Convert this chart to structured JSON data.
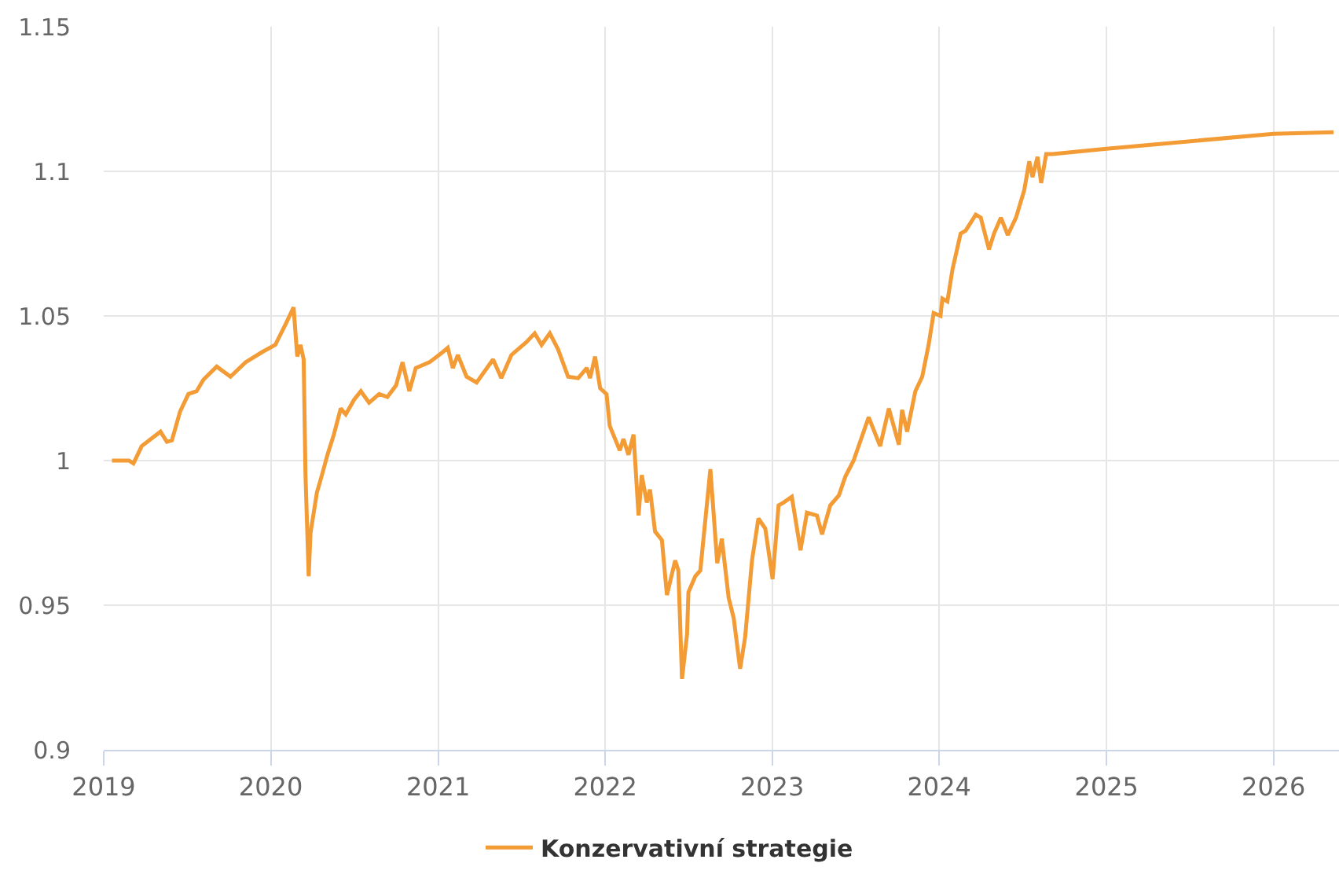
{
  "chart_data": {
    "type": "line",
    "x": [
      "2019-01-19",
      "2019-02-25",
      "2019-03-07",
      "2019-03-25",
      "2019-05-05",
      "2019-05-19",
      "2019-05-30",
      "2019-06-17",
      "2019-07-05",
      "2019-07-23",
      "2019-08-07",
      "2019-09-05",
      "2019-10-05",
      "2019-11-07",
      "2019-12-13",
      "2020-01-11",
      "2020-02-02",
      "2020-02-20",
      "2020-02-28",
      "2020-03-06",
      "2020-03-13",
      "2020-03-17",
      "2020-03-24",
      "2020-03-28",
      "2020-04-11",
      "2020-04-22",
      "2020-05-04",
      "2020-05-18",
      "2020-06-02",
      "2020-06-13",
      "2020-07-01",
      "2020-07-16",
      "2020-08-03",
      "2020-08-25",
      "2020-09-12",
      "2020-10-01",
      "2020-10-15",
      "2020-10-30",
      "2020-11-13",
      "2020-12-13",
      "2021-01-11",
      "2021-01-22",
      "2021-02-02",
      "2021-02-13",
      "2021-03-04",
      "2021-03-26",
      "2021-05-01",
      "2021-05-19",
      "2021-06-10",
      "2021-07-13",
      "2021-07-31",
      "2021-08-15",
      "2021-09-02",
      "2021-09-20",
      "2021-10-12",
      "2021-11-03",
      "2021-11-22",
      "2021-11-29",
      "2021-12-10",
      "2021-12-21",
      "2022-01-04",
      "2022-01-11",
      "2022-02-02",
      "2022-02-10",
      "2022-02-21",
      "2022-03-04",
      "2022-03-15",
      "2022-03-22",
      "2022-04-02",
      "2022-04-09",
      "2022-04-20",
      "2022-05-05",
      "2022-05-16",
      "2022-06-03",
      "2022-06-10",
      "2022-06-18",
      "2022-06-29",
      "2022-07-02",
      "2022-07-17",
      "2022-07-28",
      "2022-08-19",
      "2022-09-03",
      "2022-09-13",
      "2022-09-28",
      "2022-10-09",
      "2022-10-23",
      "2022-11-03",
      "2022-11-18",
      "2022-12-02",
      "2022-12-17",
      "2023-01-02",
      "2023-01-15",
      "2023-01-26",
      "2023-02-13",
      "2023-03-04",
      "2023-03-18",
      "2023-04-09",
      "2023-04-20",
      "2023-05-08",
      "2023-05-27",
      "2023-06-10",
      "2023-06-28",
      "2023-07-31",
      "2023-08-25",
      "2023-09-13",
      "2023-10-05",
      "2023-10-12",
      "2023-10-23",
      "2023-11-10",
      "2023-11-25",
      "2023-12-09",
      "2023-12-20",
      "2024-01-04",
      "2024-01-08",
      "2024-01-19",
      "2024-01-30",
      "2024-02-17",
      "2024-02-28",
      "2024-03-21",
      "2024-04-01",
      "2024-04-19",
      "2024-04-30",
      "2024-05-15",
      "2024-05-30",
      "2024-06-17",
      "2024-07-05",
      "2024-07-16",
      "2024-07-23",
      "2024-08-03",
      "2024-08-11",
      "2024-08-22",
      "2024-09-05",
      "2025-01-01",
      "2026-01-01",
      "2026-05-12"
    ],
    "series": [
      {
        "name": "Konzervativní strategie",
        "color": "#f39b35",
        "values": [
          1.0,
          1.0,
          0.999,
          1.005,
          1.01,
          1.0065,
          1.007,
          1.017,
          1.023,
          1.024,
          1.028,
          1.0325,
          1.029,
          1.034,
          1.0375,
          1.04,
          1.047,
          1.053,
          1.036,
          1.04,
          1.035,
          0.995,
          0.96,
          0.975,
          0.989,
          0.995,
          1.002,
          1.009,
          1.018,
          1.016,
          1.021,
          1.024,
          1.02,
          1.023,
          1.022,
          1.026,
          1.034,
          1.024,
          1.032,
          1.034,
          1.0375,
          1.039,
          1.032,
          1.0365,
          1.029,
          1.027,
          1.035,
          1.0285,
          1.0365,
          1.041,
          1.044,
          1.04,
          1.044,
          1.0385,
          1.029,
          1.0285,
          1.032,
          1.0285,
          1.036,
          1.025,
          1.023,
          1.012,
          1.0035,
          1.0075,
          1.002,
          1.009,
          0.981,
          0.995,
          0.9855,
          0.99,
          0.9755,
          0.9725,
          0.9535,
          0.9655,
          0.962,
          0.9245,
          0.94,
          0.9545,
          0.96,
          0.962,
          0.997,
          0.9645,
          0.973,
          0.9525,
          0.9455,
          0.928,
          0.939,
          0.9655,
          0.98,
          0.9765,
          0.959,
          0.9845,
          0.9855,
          0.9875,
          0.969,
          0.982,
          0.981,
          0.9745,
          0.9845,
          0.988,
          0.9945,
          1.0,
          1.015,
          1.005,
          1.018,
          1.0055,
          1.0175,
          1.01,
          1.024,
          1.029,
          1.04,
          1.051,
          1.05,
          1.056,
          1.055,
          1.066,
          1.0785,
          1.0795,
          1.085,
          1.084,
          1.073,
          1.0785,
          1.084,
          1.078,
          1.084,
          1.0935,
          1.1035,
          1.098,
          1.105,
          1.096,
          1.106,
          1.106,
          1.1078,
          1.113,
          1.1135
        ]
      }
    ],
    "xlim": [
      "2019-01-01",
      "2026-05-24"
    ],
    "xticks": [
      "2019",
      "2020",
      "2021",
      "2022",
      "2023",
      "2024",
      "2025",
      "2026"
    ],
    "ylim": [
      0.9,
      1.15
    ],
    "yticks": [
      0.9,
      0.95,
      1,
      1.05,
      1.1,
      1.15
    ],
    "grid": true,
    "legend": "bottom",
    "line_style": "solid"
  }
}
